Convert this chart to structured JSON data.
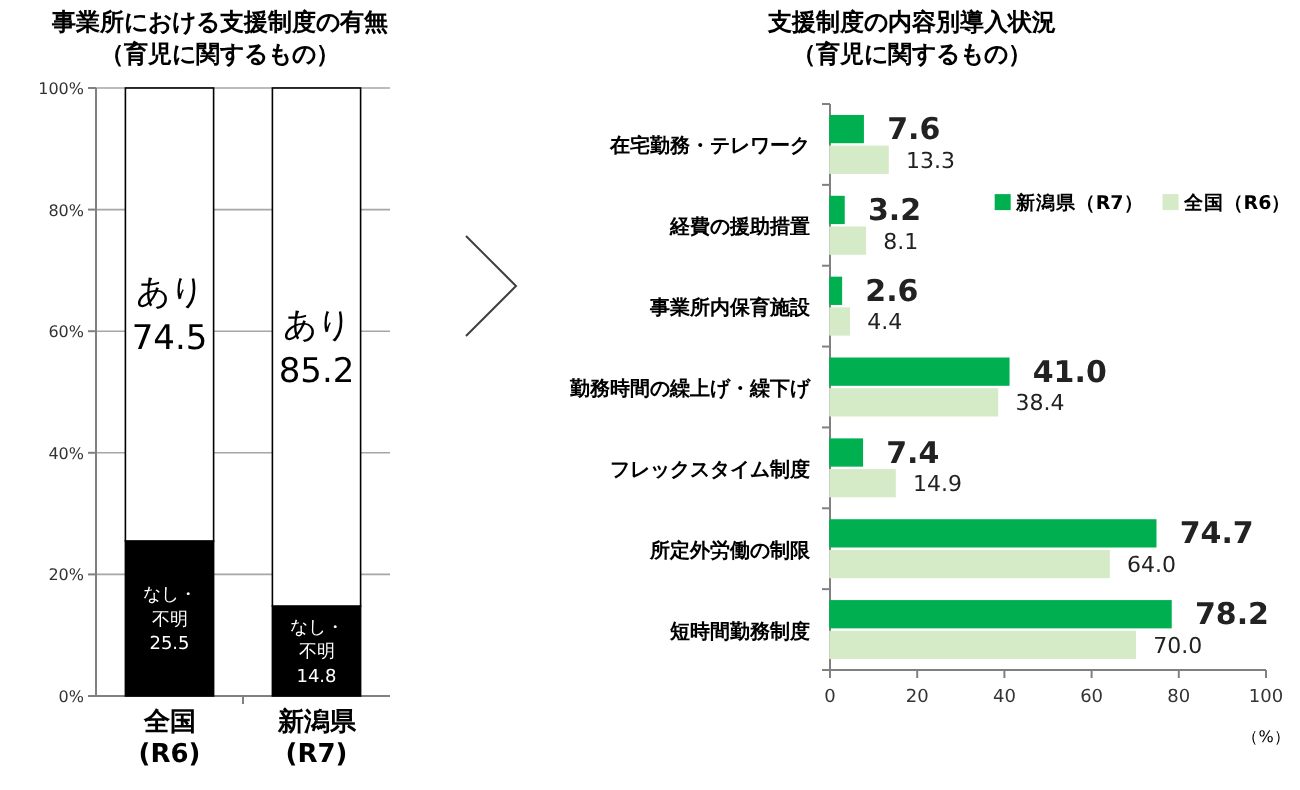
{
  "chart_data": [
    {
      "type": "bar",
      "title": "事業所における支援制度の有無（育児に関するもの）",
      "categories": [
        "全国\n(R6)",
        "新潟県\n(R7)"
      ],
      "stacked": true,
      "series": [
        {
          "name": "なし・不明",
          "color": "#000000",
          "values": [
            25.5,
            14.8
          ]
        },
        {
          "name": "あり",
          "color": "#ffffff",
          "values": [
            74.5,
            85.2
          ]
        }
      ],
      "ylim": [
        0,
        100
      ],
      "yticks": [
        {
          "value": 0,
          "label": "0%"
        },
        {
          "value": 20,
          "label": "20%"
        },
        {
          "value": 40,
          "label": "40%"
        },
        {
          "value": 60,
          "label": "60%"
        },
        {
          "value": 80,
          "label": "80%"
        },
        {
          "value": 100,
          "label": "100%"
        }
      ],
      "grid": "y",
      "legend": false,
      "data_labels": true
    },
    {
      "type": "bar",
      "orientation": "horizontal",
      "title": "支援制度の内容別導入状況（育児に関するもの）",
      "xlabel": "（%）",
      "categories": [
        "在宅勤務・テレワーク",
        "経費の援助措置",
        "事業所内保育施設",
        "勤務時間の繰上げ・繰下げ",
        "フレックスタイム制度",
        "所定外労働の制限",
        "短時間勤務制度"
      ],
      "series": [
        {
          "name": "新潟県（R7）",
          "color": "#00b050",
          "values": [
            7.6,
            3.2,
            2.6,
            41.0,
            7.4,
            74.7,
            78.2
          ],
          "value_labels": [
            "7.6",
            "3.2",
            "2.6",
            "41.0",
            "7.4",
            "74.7",
            "78.2"
          ]
        },
        {
          "name": "全国（R6）",
          "color": "#d5ebc8",
          "values": [
            13.3,
            8.1,
            4.4,
            38.4,
            14.9,
            64.0,
            70.0
          ],
          "value_labels": [
            "13.3",
            "8.1",
            "4.4",
            "38.4",
            "14.9",
            "64.0",
            "70.0"
          ]
        }
      ],
      "xlim": [
        0,
        100
      ],
      "xticks": [
        0,
        20,
        40,
        60,
        80,
        100
      ],
      "legend": "top right"
    }
  ]
}
